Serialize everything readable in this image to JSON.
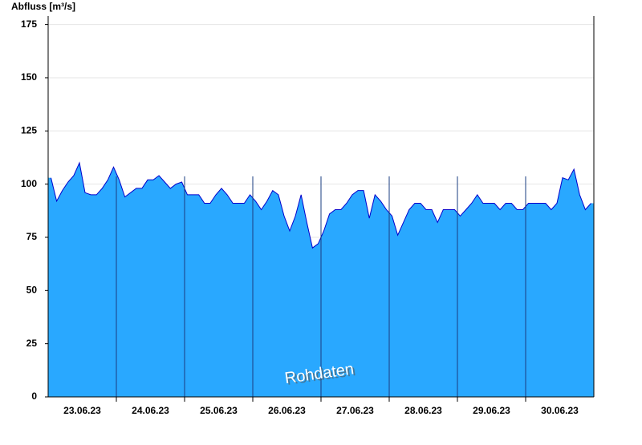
{
  "chart_data": {
    "type": "area",
    "title": "Abfluss [m³/s]",
    "annotation": "Rohdaten",
    "categories": [
      null,
      null,
      null,
      null,
      null,
      null,
      "23.06.23",
      null,
      null,
      null,
      null,
      null,
      null,
      null,
      null,
      null,
      null,
      null,
      "24.06.23",
      null,
      null,
      null,
      null,
      null,
      null,
      null,
      null,
      null,
      null,
      null,
      "25.06.23",
      null,
      null,
      null,
      null,
      null,
      null,
      null,
      null,
      null,
      null,
      null,
      "26.06.23",
      null,
      null,
      null,
      null,
      null,
      null,
      null,
      null,
      null,
      null,
      null,
      "27.06.23",
      null,
      null,
      null,
      null,
      null,
      null,
      null,
      null,
      null,
      null,
      null,
      "28.06.23",
      null,
      null,
      null,
      null,
      null,
      null,
      null,
      null,
      null,
      null,
      null,
      "29.06.23",
      null,
      null,
      null,
      null,
      null,
      null,
      null,
      null,
      null,
      null,
      null,
      "30.06.23",
      null,
      null,
      null,
      null,
      null
    ],
    "values": [
      103,
      92,
      97,
      101,
      104,
      110,
      96,
      95,
      95,
      98,
      102,
      108,
      102,
      94,
      96,
      98,
      98,
      102,
      102,
      104,
      101,
      98,
      100,
      101,
      95,
      95,
      95,
      91,
      91,
      95,
      98,
      95,
      91,
      91,
      91,
      95,
      92,
      88,
      92,
      97,
      95,
      85,
      78,
      85,
      95,
      82,
      70,
      72,
      78,
      86,
      88,
      88,
      91,
      95,
      97,
      97,
      84,
      95,
      92,
      88,
      85,
      76,
      82,
      88,
      91,
      91,
      88,
      88,
      82,
      88,
      88,
      88,
      85,
      88,
      91,
      95,
      91,
      91,
      91,
      88,
      91,
      91,
      88,
      88,
      91,
      91,
      91,
      91,
      88,
      91,
      103,
      102,
      107,
      95,
      88,
      91
    ],
    "color": "#29a8ff",
    "line_color": "#0000cc",
    "ylim": [
      0,
      179
    ],
    "yticks": [
      0,
      25,
      50,
      75,
      100,
      125,
      150,
      175
    ],
    "grid": true
  }
}
